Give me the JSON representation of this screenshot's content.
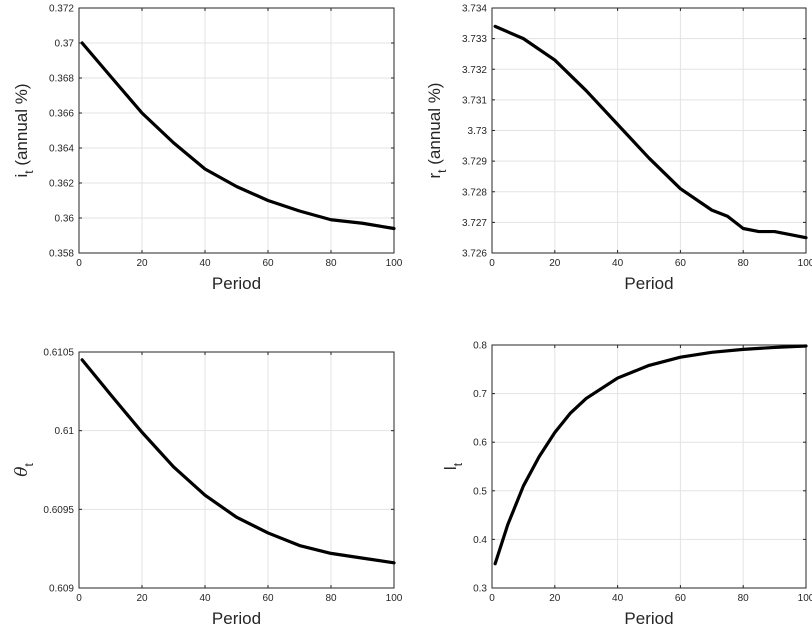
{
  "chart_data": [
    {
      "type": "line",
      "xlabel": "Period",
      "ylabel_main": "i",
      "ylabel_sub": "t",
      "ylabel_suffix": " (annual %)",
      "xlim": [
        0,
        100
      ],
      "ylim": [
        0.358,
        0.372
      ],
      "xticks": [
        "0",
        "20",
        "40",
        "60",
        "80",
        "100"
      ],
      "xtick_values": [
        0,
        20,
        40,
        60,
        80,
        100
      ],
      "yticks": [
        "0.358",
        "0.36",
        "0.362",
        "0.364",
        "0.366",
        "0.368",
        "0.37",
        "0.372"
      ],
      "ytick_values": [
        0.358,
        0.36,
        0.362,
        0.364,
        0.366,
        0.368,
        0.37,
        0.372
      ],
      "grid": true,
      "series": [
        {
          "x": [
            1,
            10,
            20,
            30,
            40,
            50,
            60,
            70,
            80,
            90,
            100
          ],
          "y": [
            0.37,
            0.3681,
            0.366,
            0.3643,
            0.3628,
            0.3618,
            0.361,
            0.3604,
            0.3599,
            0.3597,
            0.3594
          ]
        }
      ]
    },
    {
      "type": "line",
      "xlabel": "Period",
      "ylabel_main": "r",
      "ylabel_sub": "t",
      "ylabel_suffix": " (annual %)",
      "xlim": [
        0,
        100
      ],
      "ylim": [
        3.726,
        3.734
      ],
      "xticks": [
        "0",
        "20",
        "40",
        "60",
        "80",
        "100"
      ],
      "xtick_values": [
        0,
        20,
        40,
        60,
        80,
        100
      ],
      "yticks": [
        "3.726",
        "3.727",
        "3.728",
        "3.729",
        "3.73",
        "3.731",
        "3.732",
        "3.733",
        "3.734"
      ],
      "ytick_values": [
        3.726,
        3.727,
        3.728,
        3.729,
        3.73,
        3.731,
        3.732,
        3.733,
        3.734
      ],
      "grid": true,
      "series": [
        {
          "x": [
            1,
            10,
            20,
            30,
            40,
            50,
            60,
            70,
            75,
            80,
            85,
            90,
            100
          ],
          "y": [
            3.7334,
            3.733,
            3.7323,
            3.7313,
            3.7302,
            3.7291,
            3.7281,
            3.7274,
            3.7272,
            3.7268,
            3.7267,
            3.7267,
            3.7265
          ]
        }
      ]
    },
    {
      "type": "line",
      "xlabel": "Period",
      "ylabel_main": "θ",
      "ylabel_sub": "t",
      "ylabel_suffix": "",
      "xlim": [
        0,
        100
      ],
      "ylim": [
        0.609,
        0.6105
      ],
      "xticks": [
        "0",
        "20",
        "40",
        "60",
        "80",
        "100"
      ],
      "xtick_values": [
        0,
        20,
        40,
        60,
        80,
        100
      ],
      "yticks": [
        "0.609",
        "0.6095",
        "0.61",
        "0.6105"
      ],
      "ytick_values": [
        0.609,
        0.6095,
        0.61,
        0.6105
      ],
      "grid": true,
      "series": [
        {
          "x": [
            1,
            10,
            20,
            30,
            40,
            50,
            60,
            70,
            80,
            90,
            100
          ],
          "y": [
            0.61045,
            0.61023,
            0.60999,
            0.60977,
            0.60959,
            0.60945,
            0.60935,
            0.60927,
            0.60922,
            0.60919,
            0.60916
          ]
        }
      ]
    },
    {
      "type": "line",
      "xlabel": "Period",
      "ylabel_main": "l",
      "ylabel_sub": "t",
      "ylabel_suffix": "",
      "xlim": [
        0,
        100
      ],
      "ylim": [
        0.3,
        0.8
      ],
      "xticks": [
        "0",
        "20",
        "40",
        "60",
        "80",
        "100"
      ],
      "xtick_values": [
        0,
        20,
        40,
        60,
        80,
        100
      ],
      "yticks": [
        "0.3",
        "0.4",
        "0.5",
        "0.6",
        "0.7",
        "0.8"
      ],
      "ytick_values": [
        0.3,
        0.4,
        0.5,
        0.6,
        0.7,
        0.8
      ],
      "grid": true,
      "series": [
        {
          "x": [
            1,
            5,
            10,
            15,
            20,
            25,
            30,
            40,
            50,
            60,
            70,
            80,
            90,
            100
          ],
          "y": [
            0.35,
            0.43,
            0.51,
            0.57,
            0.62,
            0.66,
            0.69,
            0.732,
            0.758,
            0.775,
            0.785,
            0.791,
            0.795,
            0.798
          ]
        }
      ]
    }
  ]
}
